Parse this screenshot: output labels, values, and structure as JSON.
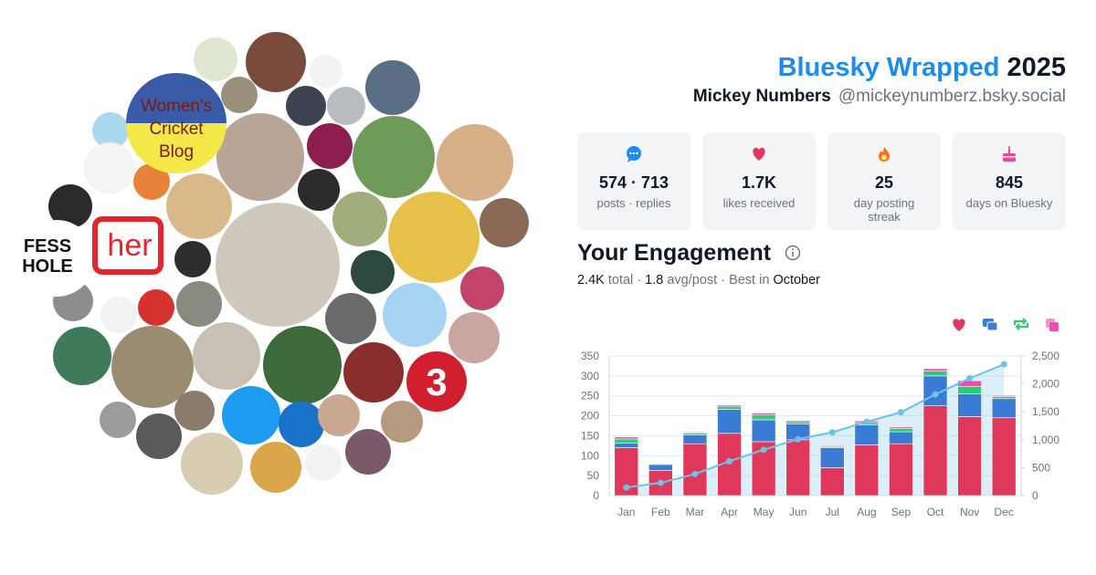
{
  "header": {
    "title": "Bluesky Wrapped",
    "year": "2025",
    "name": "Mickey Numbers",
    "handle": "@mickeynumberz.bsky.social"
  },
  "avatars": {
    "fess": [
      "FESS",
      "HOLE"
    ],
    "her": "her",
    "blog": [
      "Women's",
      "Cricket",
      "Blog"
    ],
    "three": "3"
  },
  "stats": [
    {
      "value": "574 · 713",
      "label": "posts · replies",
      "icon": "chat",
      "color": "#1d8cf0"
    },
    {
      "value": "1.7K",
      "label": "likes received",
      "icon": "heart",
      "color": "#e0385a"
    },
    {
      "value": "25",
      "label": "day posting streak",
      "icon": "flame",
      "color": "#f97316"
    },
    {
      "value": "845",
      "label": "days on Bluesky",
      "icon": "cake",
      "color": "#ec4899"
    }
  ],
  "engagement": {
    "title": "Your Engagement",
    "summary": [
      {
        "text": "2.4K",
        "bold": true
      },
      {
        "text": " total · "
      },
      {
        "text": "1.8",
        "bold": true
      },
      {
        "text": " avg/post · Best in "
      },
      {
        "text": "October",
        "bold": true
      }
    ]
  },
  "chart_data": {
    "type": "bar",
    "stacked": true,
    "grid": true,
    "categories": [
      "Jan",
      "Feb",
      "Mar",
      "Apr",
      "May",
      "Jun",
      "Jul",
      "Aug",
      "Sep",
      "Oct",
      "Nov",
      "Dec"
    ],
    "ylim": [
      0,
      350
    ],
    "yticks": [
      0,
      50,
      100,
      150,
      200,
      250,
      300,
      350
    ],
    "y2lim": [
      0,
      2500
    ],
    "y2ticks": [
      0,
      500,
      {
        "value": 1000,
        "label": "1,000"
      },
      {
        "value": 1500,
        "label": "1,500"
      },
      {
        "value": 2000,
        "label": "2,000"
      },
      {
        "value": 2500,
        "label": "2,500"
      }
    ],
    "series": [
      {
        "icon": "heart",
        "color": "#e0385a",
        "values": [
          120,
          63,
          130,
          156,
          135,
          140,
          70,
          127,
          130,
          225,
          198,
          195
        ]
      },
      {
        "icon": "reply",
        "color": "#3a7bd5",
        "values": [
          12,
          15,
          22,
          60,
          55,
          40,
          50,
          50,
          30,
          75,
          57,
          48
        ]
      },
      {
        "icon": "repost",
        "color": "#2ecc71",
        "values": [
          10,
          2,
          5,
          8,
          12,
          5,
          3,
          6,
          8,
          12,
          18,
          5
        ]
      },
      {
        "icon": "quote",
        "color": "#e84fb0",
        "values": [
          5,
          1,
          2,
          3,
          5,
          3,
          2,
          4,
          4,
          6,
          15,
          3
        ]
      },
      {
        "type": "line",
        "axis": "y2",
        "color": "#6ec1e8",
        "values": [
          147,
          228,
          387,
          614,
          821,
          1009,
          1134,
          1321,
          1493,
          1811,
          2099,
          2350
        ]
      }
    ]
  }
}
